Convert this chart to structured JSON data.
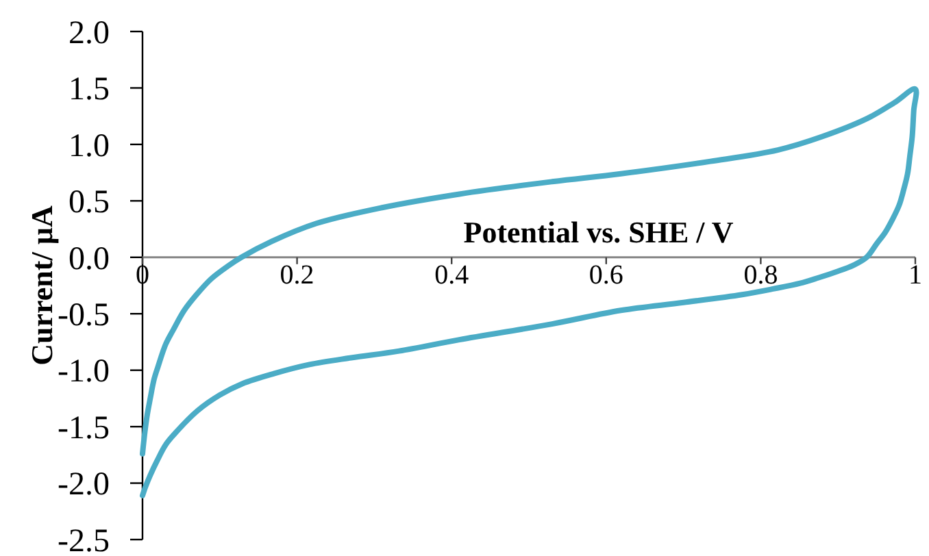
{
  "chart_data": {
    "type": "line",
    "xlabel": "Potential vs. SHE / V",
    "ylabel": "Current/ µA",
    "xlim": [
      0,
      1
    ],
    "ylim": [
      -2.5,
      2.0
    ],
    "xticks": [
      0,
      0.2,
      0.4,
      0.6,
      0.8,
      1
    ],
    "yticks": [
      {
        "value": 2.0,
        "label": "2.0"
      },
      {
        "value": 1.5,
        "label": "1.5"
      },
      {
        "value": 1.0,
        "label": "1.0"
      },
      {
        "value": 0.5,
        "label": "0.5"
      },
      {
        "value": 0.0,
        "label": "0.0"
      },
      {
        "value": -0.5,
        "label": "-0.5"
      },
      {
        "value": -1.0,
        "label": "-1.0"
      },
      {
        "value": -1.5,
        "label": "-1.5"
      },
      {
        "value": -2.0,
        "label": "-2.0"
      },
      {
        "value": -2.5,
        "label": "-2.5"
      }
    ],
    "series": [
      {
        "color": "#4bacc6",
        "x": [
          0,
          0.003,
          0.006,
          0.01,
          0.015,
          0.02,
          0.03,
          0.04,
          0.054,
          0.07,
          0.089,
          0.11,
          0.128,
          0.167,
          0.225,
          0.31,
          0.41,
          0.53,
          0.619,
          0.735,
          0.822,
          0.88,
          0.938,
          0.973,
          1.0,
          0.998,
          0.996,
          0.993,
          0.99,
          0.985,
          0.979,
          0.97,
          0.961,
          0.95,
          0.937,
          0.92,
          0.897,
          0.875,
          0.851,
          0.816,
          0.776,
          0.7,
          0.619,
          0.53,
          0.41,
          0.332,
          0.27,
          0.216,
          0.17,
          0.129,
          0.1,
          0.071,
          0.042,
          0.03,
          0.019,
          0.01,
          0.004,
          0.0
        ],
        "values": [
          -1.74,
          -1.55,
          -1.4,
          -1.25,
          -1.08,
          -0.97,
          -0.77,
          -0.64,
          -0.47,
          -0.33,
          -0.19,
          -0.08,
          0.0,
          0.14,
          0.3,
          0.44,
          0.56,
          0.67,
          0.74,
          0.85,
          0.95,
          1.07,
          1.23,
          1.37,
          1.49,
          1.3,
          1.07,
          0.9,
          0.74,
          0.6,
          0.46,
          0.33,
          0.22,
          0.12,
          0.0,
          -0.07,
          -0.13,
          -0.18,
          -0.23,
          -0.28,
          -0.33,
          -0.4,
          -0.47,
          -0.59,
          -0.73,
          -0.83,
          -0.89,
          -0.95,
          -1.03,
          -1.12,
          -1.22,
          -1.36,
          -1.56,
          -1.66,
          -1.8,
          -1.93,
          -2.03,
          -2.11
        ]
      }
    ]
  }
}
